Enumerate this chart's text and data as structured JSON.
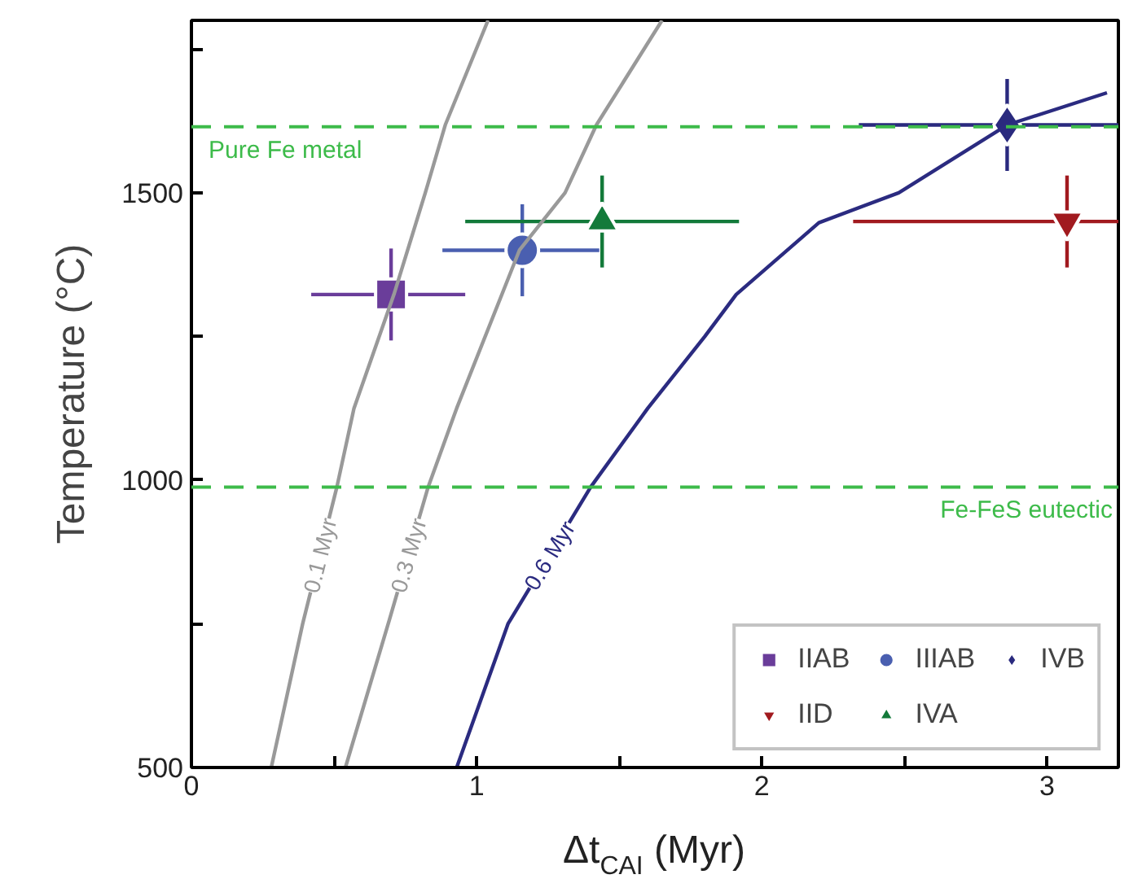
{
  "chart_data": {
    "type": "scatter",
    "xlabel": "Δt$_{CAI}$ (Myr)",
    "ylabel": "Temperature (°C)",
    "xlim": [
      0,
      3.25
    ],
    "ylim": [
      500,
      1800
    ],
    "xticks": [
      0,
      {
        "value": 0.5,
        "label": null
      },
      1,
      {
        "value": 1.5,
        "label": null
      },
      2,
      {
        "value": 2.5,
        "label": null
      },
      3
    ],
    "yticks": [
      500,
      {
        "value": 750,
        "label": null
      },
      1000,
      {
        "value": 1250,
        "label": null
      },
      1500,
      {
        "value": 1750,
        "label": null
      }
    ],
    "grid": false,
    "legend": "bottom right",
    "series": [
      {
        "name": "IIAB",
        "color": "#6a3d9a",
        "marker": "square",
        "x": [
          0.7
        ],
        "values": [
          1323
        ],
        "errors": [
          80
        ],
        "xerrors": [
          [
            0.42,
            0.96
          ]
        ]
      },
      {
        "name": "IIIAB",
        "color": "#4a5fb0",
        "marker": "circle",
        "x": [
          1.16
        ],
        "values": [
          1400
        ],
        "errors": [
          80
        ],
        "xerrors": [
          [
            0.88,
            1.43
          ]
        ]
      },
      {
        "name": "IVB",
        "color": "#2a2a7e",
        "marker": "diamond",
        "x": [
          2.86
        ],
        "values": [
          1618
        ],
        "errors": [
          80
        ],
        "xerrors": [
          [
            2.34,
            3.25
          ]
        ]
      },
      {
        "name": "IID",
        "color": "#a11a1f",
        "marker": "triangle_down",
        "x": [
          3.07
        ],
        "values": [
          1450
        ],
        "errors": [
          80
        ],
        "xerrors": [
          [
            2.32,
            3.25
          ]
        ]
      },
      {
        "name": "IVA",
        "color": "#137a3a",
        "marker": "triangle",
        "x": [
          1.44
        ],
        "values": [
          1450
        ],
        "errors": [
          80
        ],
        "xerrors": [
          [
            0.96,
            1.92
          ]
        ]
      },
      {
        "name": "0.1 Myr",
        "type": "line",
        "color": "#999999",
        "x": [
          0.28,
          0.39,
          0.51,
          0.57,
          0.71,
          0.82,
          0.89,
          1.04
        ],
        "values": [
          500,
          750,
          988,
          1125,
          1323,
          1500,
          1618,
          1800
        ]
      },
      {
        "name": "0.3 Myr",
        "type": "line",
        "color": "#999999",
        "x": [
          0.54,
          0.69,
          0.83,
          0.93,
          1.15,
          1.31,
          1.42,
          1.65
        ],
        "values": [
          500,
          750,
          988,
          1125,
          1400,
          1500,
          1618,
          1800
        ]
      },
      {
        "name": "0.6 Myr",
        "type": "line",
        "color": "#2b2b80",
        "x": [
          0.93,
          1.11,
          1.4,
          1.6,
          1.8,
          1.91,
          2.2,
          2.48,
          2.86,
          3.21
        ],
        "values": [
          500,
          750,
          988,
          1125,
          1250,
          1323,
          1448,
          1500,
          1618,
          1674
        ]
      }
    ],
    "ref_lines": [
      {
        "axis": "y",
        "value": 1615,
        "label": "Pure Fe metal",
        "color": "#3dbb4a",
        "line_style": "dashed"
      },
      {
        "axis": "y",
        "value": 988,
        "label": "Fe-FeS eutectic",
        "color": "#3dbb4a",
        "line_style": "dashed"
      }
    ]
  }
}
